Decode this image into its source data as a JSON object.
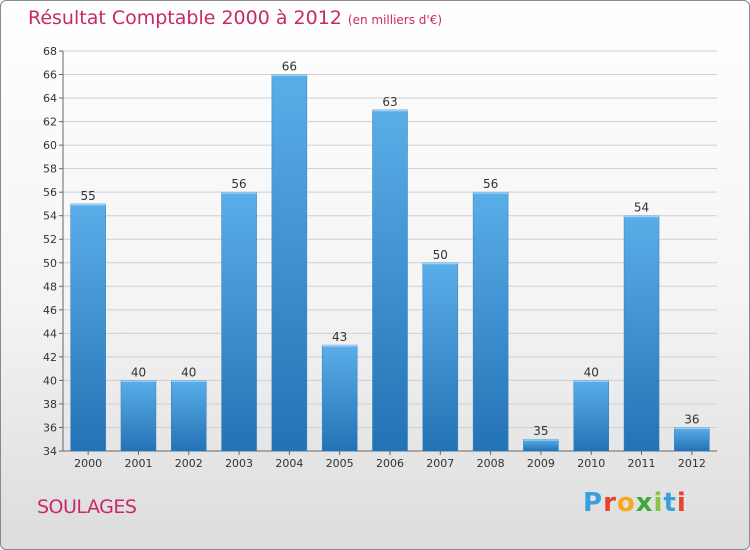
{
  "title": "Résultat Comptable 2000 à 2012",
  "unit": "(en milliers d'€)",
  "commune": "SOULAGES",
  "logo": {
    "letters": [
      {
        "ch": "P",
        "color": "#3aa0dc"
      },
      {
        "ch": "r",
        "color": "#e8412c"
      },
      {
        "ch": "o",
        "color": "#f6a81a"
      },
      {
        "ch": "x",
        "color": "#3ea83a"
      },
      {
        "ch": "i",
        "color": "#8ac43f"
      },
      {
        "ch": "t",
        "color": "#3aa0dc"
      },
      {
        "ch": "i",
        "color": "#e8412c"
      }
    ]
  },
  "chart_data": {
    "type": "bar",
    "title": "Résultat Comptable 2000 à 2012",
    "categories": [
      "2000",
      "2001",
      "2002",
      "2003",
      "2004",
      "2005",
      "2006",
      "2007",
      "2008",
      "2009",
      "2010",
      "2011",
      "2012"
    ],
    "values": [
      55,
      40,
      40,
      56,
      66,
      43,
      63,
      50,
      56,
      35,
      40,
      54,
      36
    ],
    "ylim": [
      34,
      68
    ],
    "yticks": [
      34,
      36,
      38,
      40,
      42,
      44,
      46,
      48,
      50,
      52,
      54,
      56,
      58,
      60,
      62,
      64,
      66,
      68
    ],
    "grid": true,
    "bar_color": "#3d95d8"
  }
}
